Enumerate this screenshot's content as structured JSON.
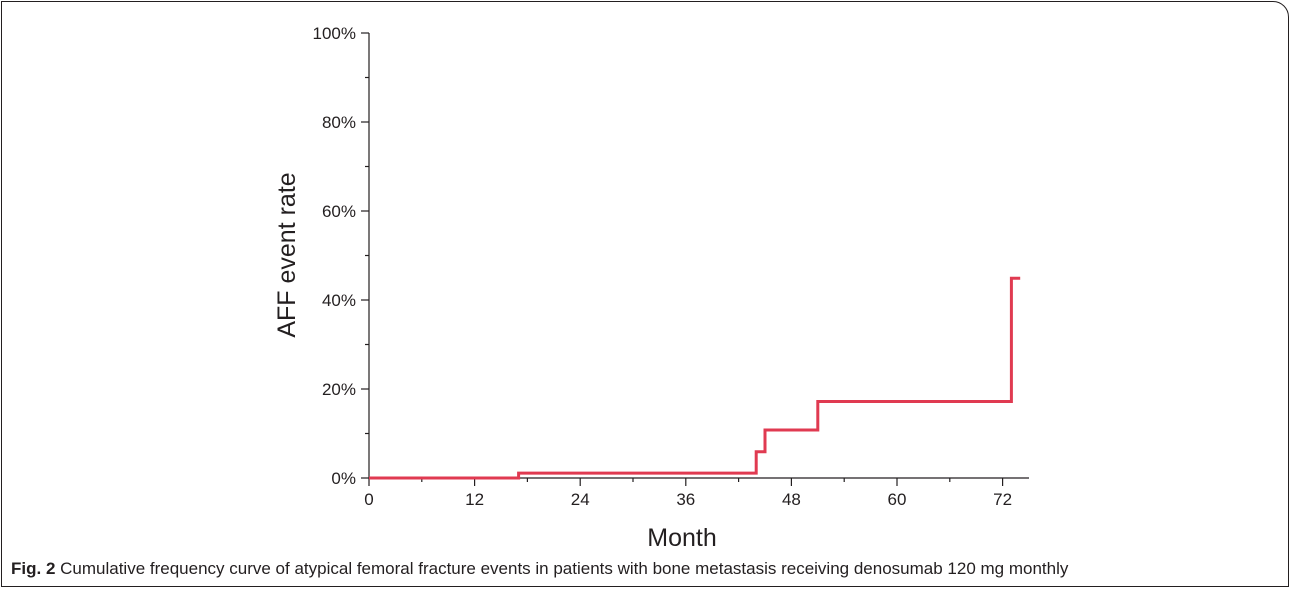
{
  "chart_data": {
    "type": "line",
    "step": true,
    "xlabel": "Month",
    "ylabel": "AFF event rate",
    "xlim": [
      0,
      75
    ],
    "ylim": [
      0,
      100
    ],
    "x_ticks": [
      0,
      12,
      24,
      36,
      48,
      60,
      72
    ],
    "x_tick_labels": [
      "0",
      "12",
      "24",
      "36",
      "48",
      "60",
      "72"
    ],
    "y_ticks": [
      0,
      20,
      40,
      60,
      80,
      100
    ],
    "y_tick_labels": [
      "0%",
      "20%",
      "40%",
      "60%",
      "80%",
      "100%"
    ],
    "x_minor_ticks": [
      6,
      18,
      30,
      42,
      54,
      66
    ],
    "y_minor_ticks": [
      10,
      30,
      50,
      70,
      90
    ],
    "grid": false,
    "series": [
      {
        "color": "#e03a51",
        "x": [
          0,
          17,
          44,
          45,
          51,
          73,
          74
        ],
        "y": [
          0,
          1.1,
          5.9,
          10.8,
          17.2,
          44.9,
          44.9
        ]
      }
    ]
  },
  "caption": {
    "label": "Fig. 2",
    "text": " Cumulative frequency curve of atypical femoral fracture events in patients with bone metastasis receiving denosumab 120 mg monthly"
  }
}
